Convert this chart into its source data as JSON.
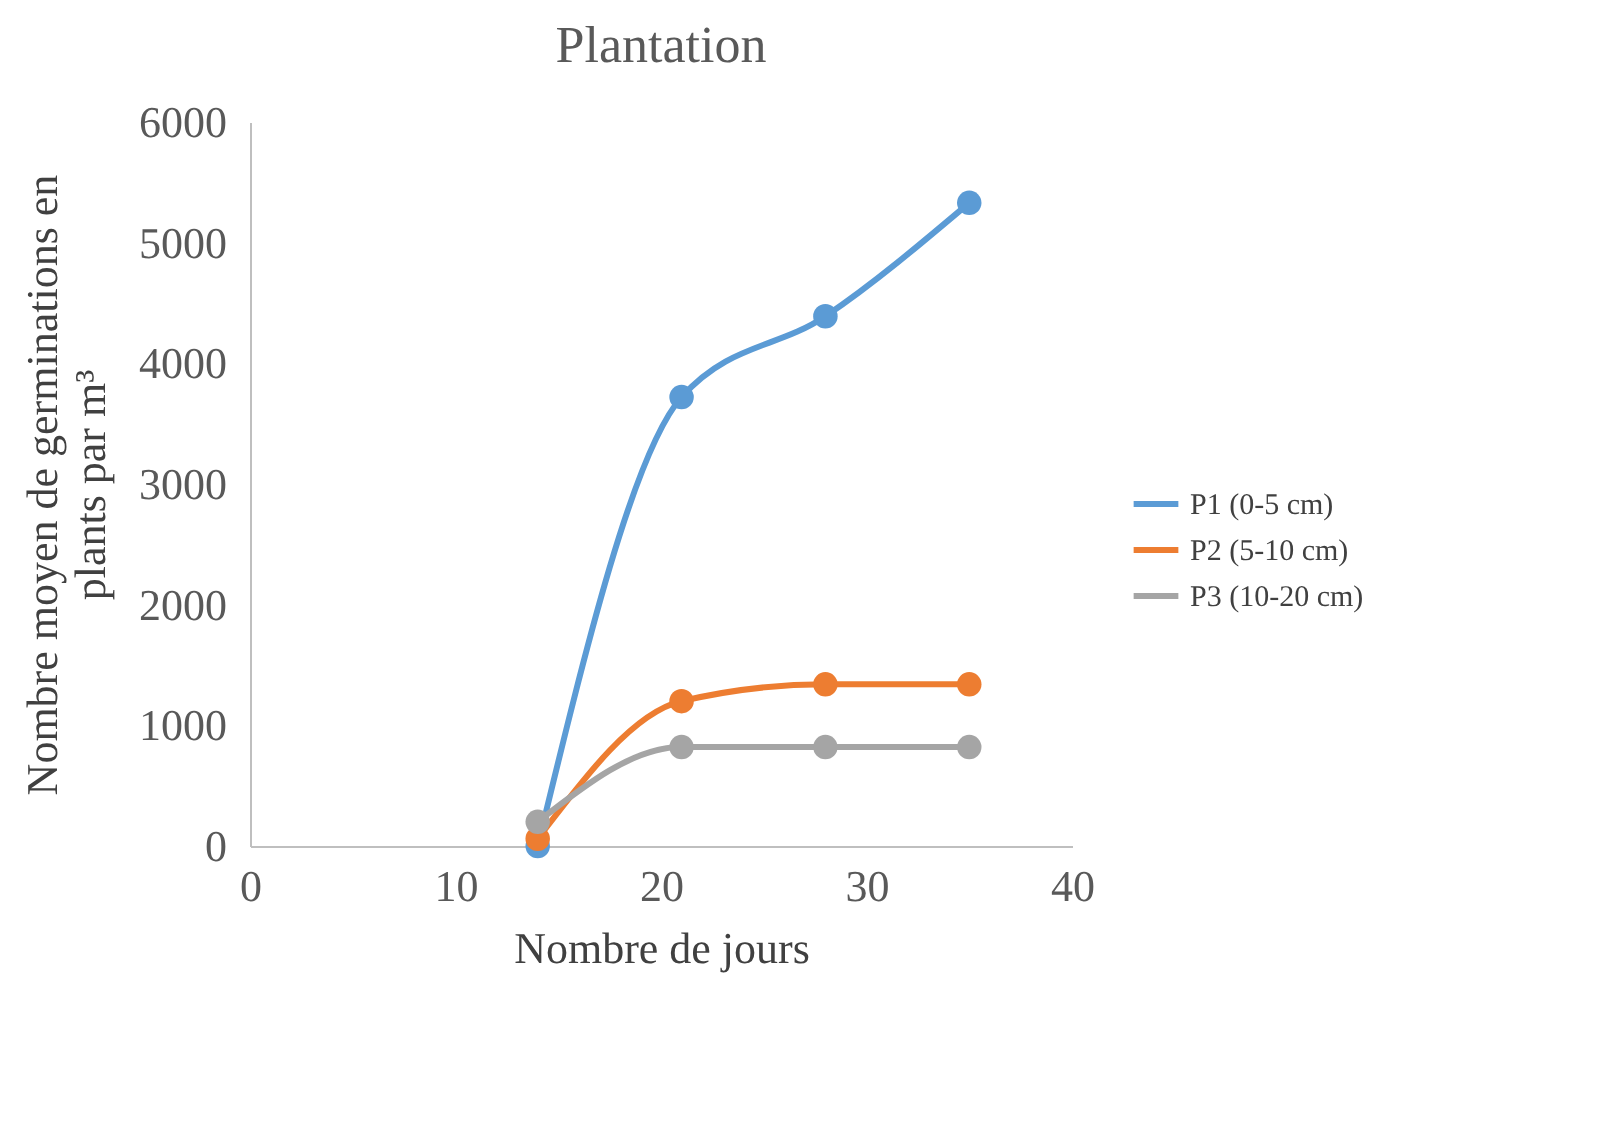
{
  "chart_data": {
    "type": "line",
    "title": "Plantation",
    "xlabel": "Nombre de jours",
    "ylabel": "Nombre moyen de germinations en plants par m³",
    "x": [
      14,
      21,
      28,
      35
    ],
    "series": [
      {
        "name": "P1 (0-5 cm)",
        "color": "#5b9bd5",
        "values": [
          0,
          3720,
          4390,
          5330
        ]
      },
      {
        "name": "P2 (5-10 cm)",
        "color": "#ed7d31",
        "values": [
          60,
          1200,
          1340,
          1340
        ]
      },
      {
        "name": "P3 (10-20 cm)",
        "color": "#a5a5a5",
        "values": [
          200,
          820,
          820,
          820
        ]
      }
    ],
    "xlim": [
      0,
      40
    ],
    "xticks": [
      0,
      10,
      20,
      30,
      40
    ],
    "ylim": [
      0,
      6000
    ],
    "yticks": [
      0,
      1000,
      2000,
      3000,
      4000,
      5000,
      6000
    ],
    "grid": false,
    "legend": "right",
    "marker": "circle",
    "line_style": "solid"
  }
}
